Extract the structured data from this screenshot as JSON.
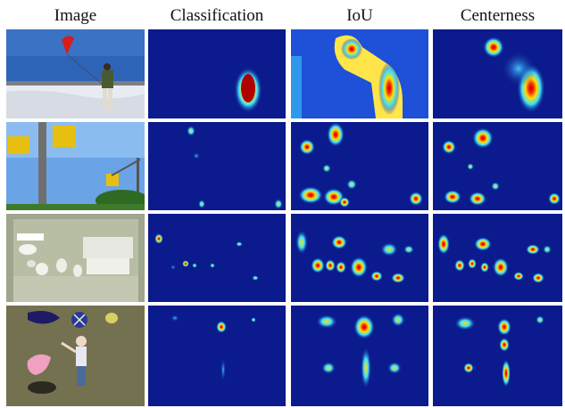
{
  "columns": [
    "Image",
    "Classification",
    "IoU",
    "Centerness"
  ],
  "rows": [
    {
      "scene": "kite-flyer-on-snow"
    },
    {
      "scene": "traffic-lights-on-pole"
    },
    {
      "scene": "ceramics-display-case"
    },
    {
      "scene": "child-with-kites-on-grass"
    }
  ],
  "colormap": "jet",
  "colors": {
    "heat_bg": "#0b1a8c",
    "heat_mid": "#2fd0ff",
    "heat_high": "#ffe000",
    "heat_peak": "#c00000"
  }
}
